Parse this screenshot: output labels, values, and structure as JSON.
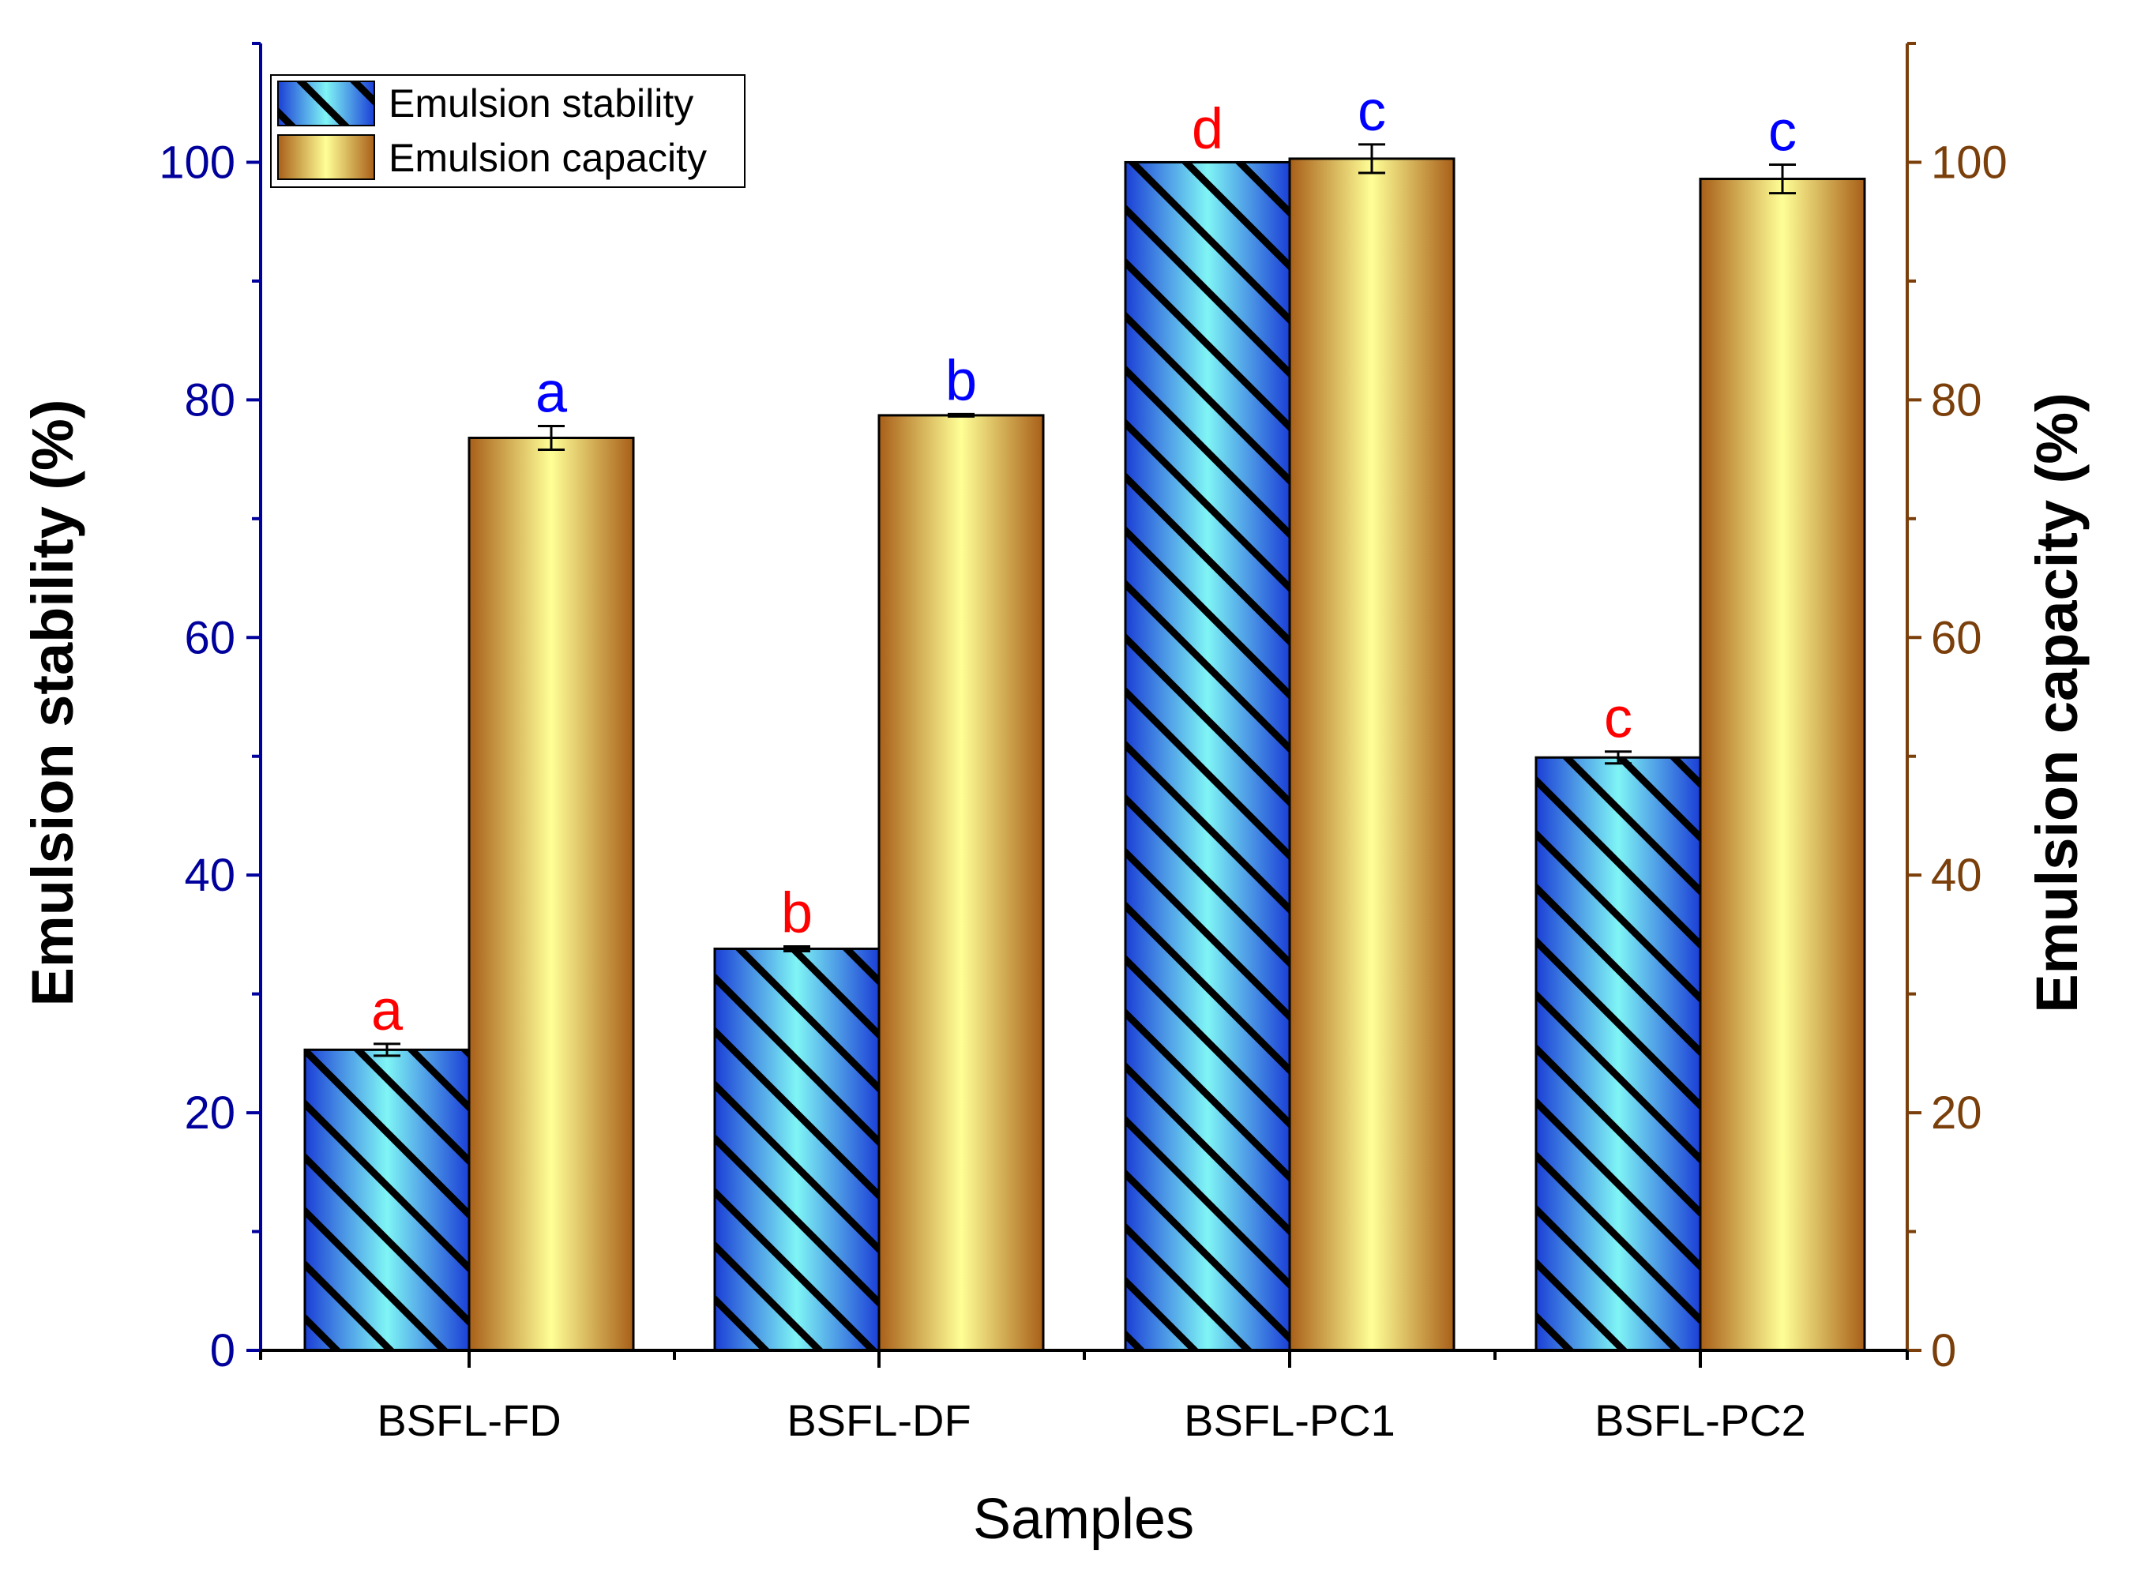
{
  "chart_data": {
    "type": "bar",
    "categories": [
      "BSFL-FD",
      "BSFL-DF",
      "BSFL-PC1",
      "BSFL-PC2"
    ],
    "series": [
      {
        "name": "Emulsion stability",
        "axis": "left",
        "values": [
          25.3,
          33.8,
          100.0,
          49.9
        ],
        "errors": [
          0.5,
          0.2,
          0.0,
          0.5
        ],
        "letters": [
          "a",
          "b",
          "d",
          "c"
        ],
        "letter_color": "#ff0000"
      },
      {
        "name": "Emulsion capacity",
        "axis": "right",
        "values": [
          76.8,
          78.7,
          100.3,
          98.6
        ],
        "errors": [
          1.0,
          0.1,
          1.2,
          1.2
        ],
        "letters": [
          "a",
          "b",
          "c",
          "c"
        ],
        "letter_color": "#0000ff"
      }
    ],
    "xlabel": "Samples",
    "ylabel_left": "Emulsion stability (%)",
    "ylabel_right": "Emulsion capacity (%)",
    "ylim": [
      0,
      110
    ],
    "yticks": [
      0,
      20,
      40,
      60,
      80,
      100
    ],
    "grid": false,
    "legend_position": "top-left"
  },
  "colors": {
    "left_axis": "#00009c",
    "right_axis": "#7a3f0a",
    "stability_dark": "#1b3fd6",
    "stability_light": "#7ff5f5",
    "capacity_dark": "#a85f18",
    "capacity_light": "#ffff96",
    "hatch": "#000000"
  }
}
